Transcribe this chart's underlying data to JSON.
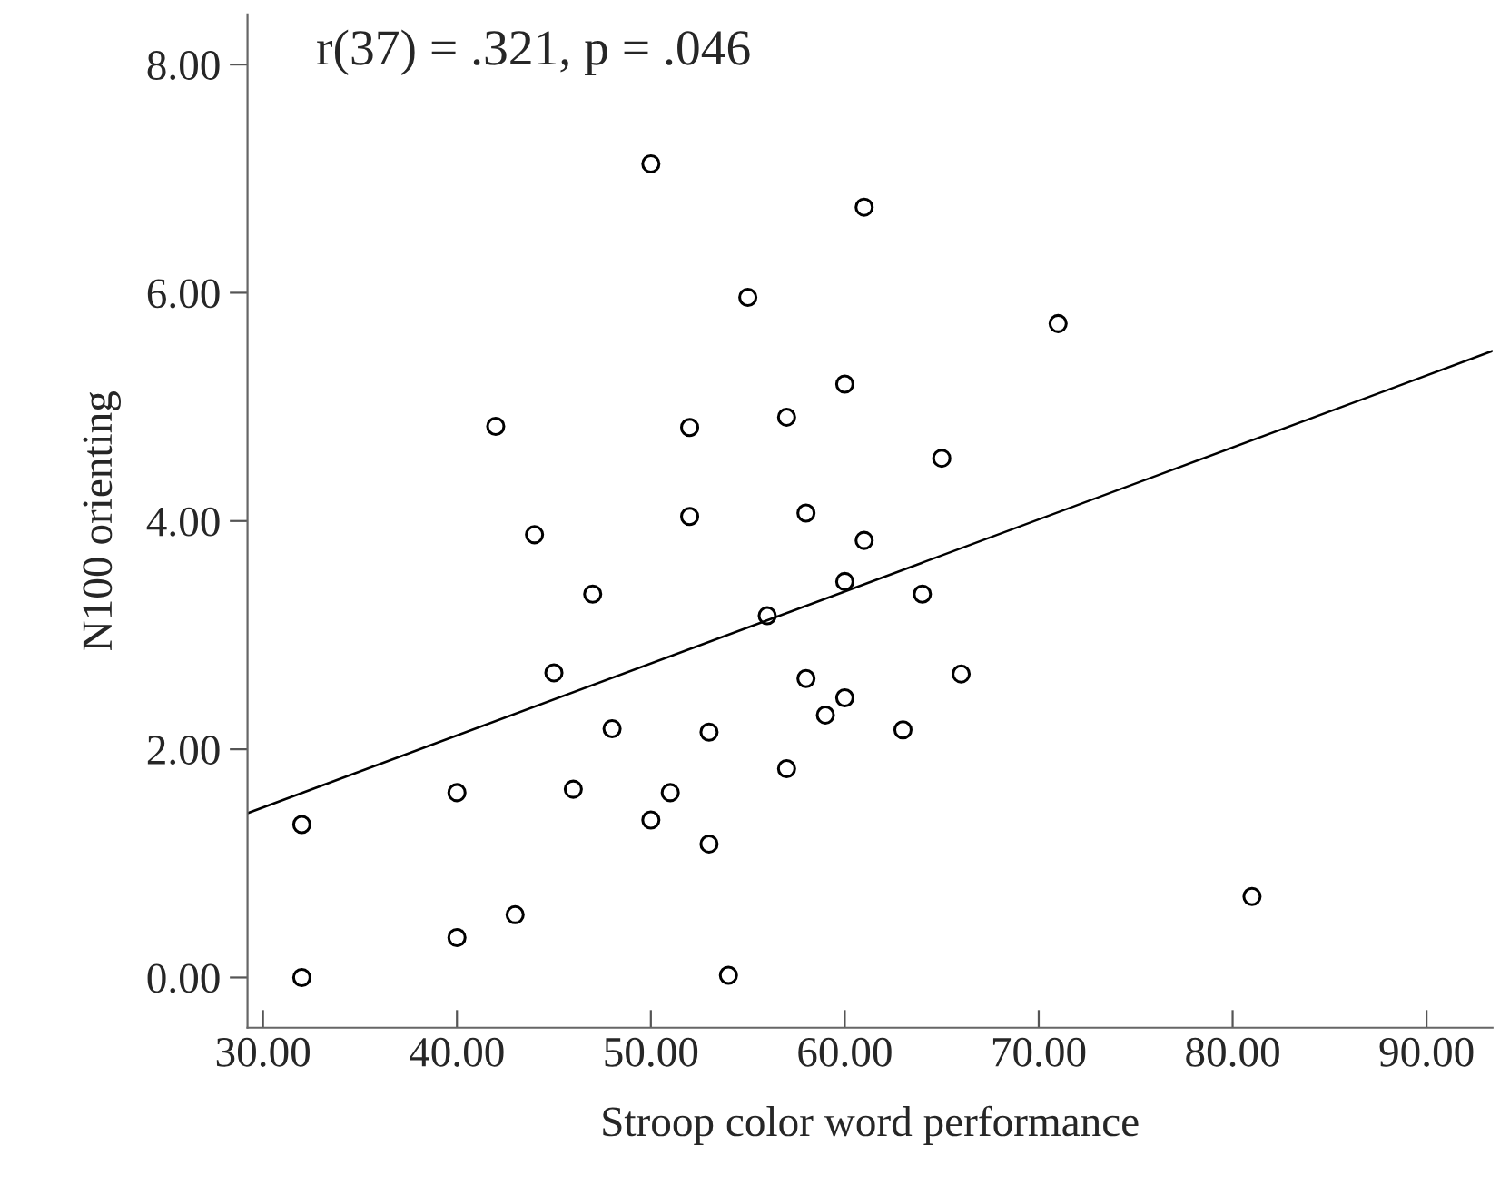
{
  "chart_data": {
    "type": "scatter",
    "xlabel": "Stroop color word performance",
    "ylabel": "N100 orienting",
    "annotations": [
      "r(37) = .321, p = .046"
    ],
    "xlim": [
      29.2,
      93.4
    ],
    "ylim": [
      -0.44,
      8.44
    ],
    "xticks": [
      {
        "value": 30,
        "label": "30.00"
      },
      {
        "value": 40,
        "label": "40.00"
      },
      {
        "value": 50,
        "label": "50.00"
      },
      {
        "value": 60,
        "label": "60.00"
      },
      {
        "value": 70,
        "label": "70.00"
      },
      {
        "value": 80,
        "label": "80.00"
      },
      {
        "value": 90,
        "label": "90.00"
      }
    ],
    "yticks": [
      {
        "value": 0,
        "label": "0.00"
      },
      {
        "value": 2,
        "label": "2.00"
      },
      {
        "value": 4,
        "label": "4.00"
      },
      {
        "value": 6,
        "label": "6.00"
      },
      {
        "value": 8,
        "label": "8.00"
      }
    ],
    "grid": false,
    "series": [
      {
        "marker": "circle",
        "color": "#000000",
        "x": [
          32,
          32,
          40,
          40,
          43,
          45,
          47,
          46,
          48,
          50,
          51,
          53,
          53,
          54,
          56,
          57,
          58,
          59,
          60,
          60,
          64,
          66,
          63,
          81,
          50,
          61,
          55,
          60,
          57,
          52,
          42,
          52,
          58,
          44,
          61,
          71,
          65
        ],
        "values": [
          1.34,
          0,
          1.62,
          0.35,
          0.55,
          2.67,
          3.36,
          1.65,
          2.18,
          1.38,
          1.62,
          2.15,
          1.17,
          0.02,
          3.17,
          1.83,
          2.62,
          2.3,
          2.45,
          3.47,
          3.36,
          2.66,
          2.17,
          0.71,
          7.13,
          6.75,
          5.96,
          5.2,
          4.91,
          4.82,
          4.83,
          4.04,
          4.07,
          3.88,
          3.83,
          5.73,
          4.55
        ]
      },
      {
        "type": "line",
        "color": "#000000",
        "x": [
          29.2,
          93.4
        ],
        "values": [
          1.44,
          5.49
        ]
      }
    ]
  }
}
